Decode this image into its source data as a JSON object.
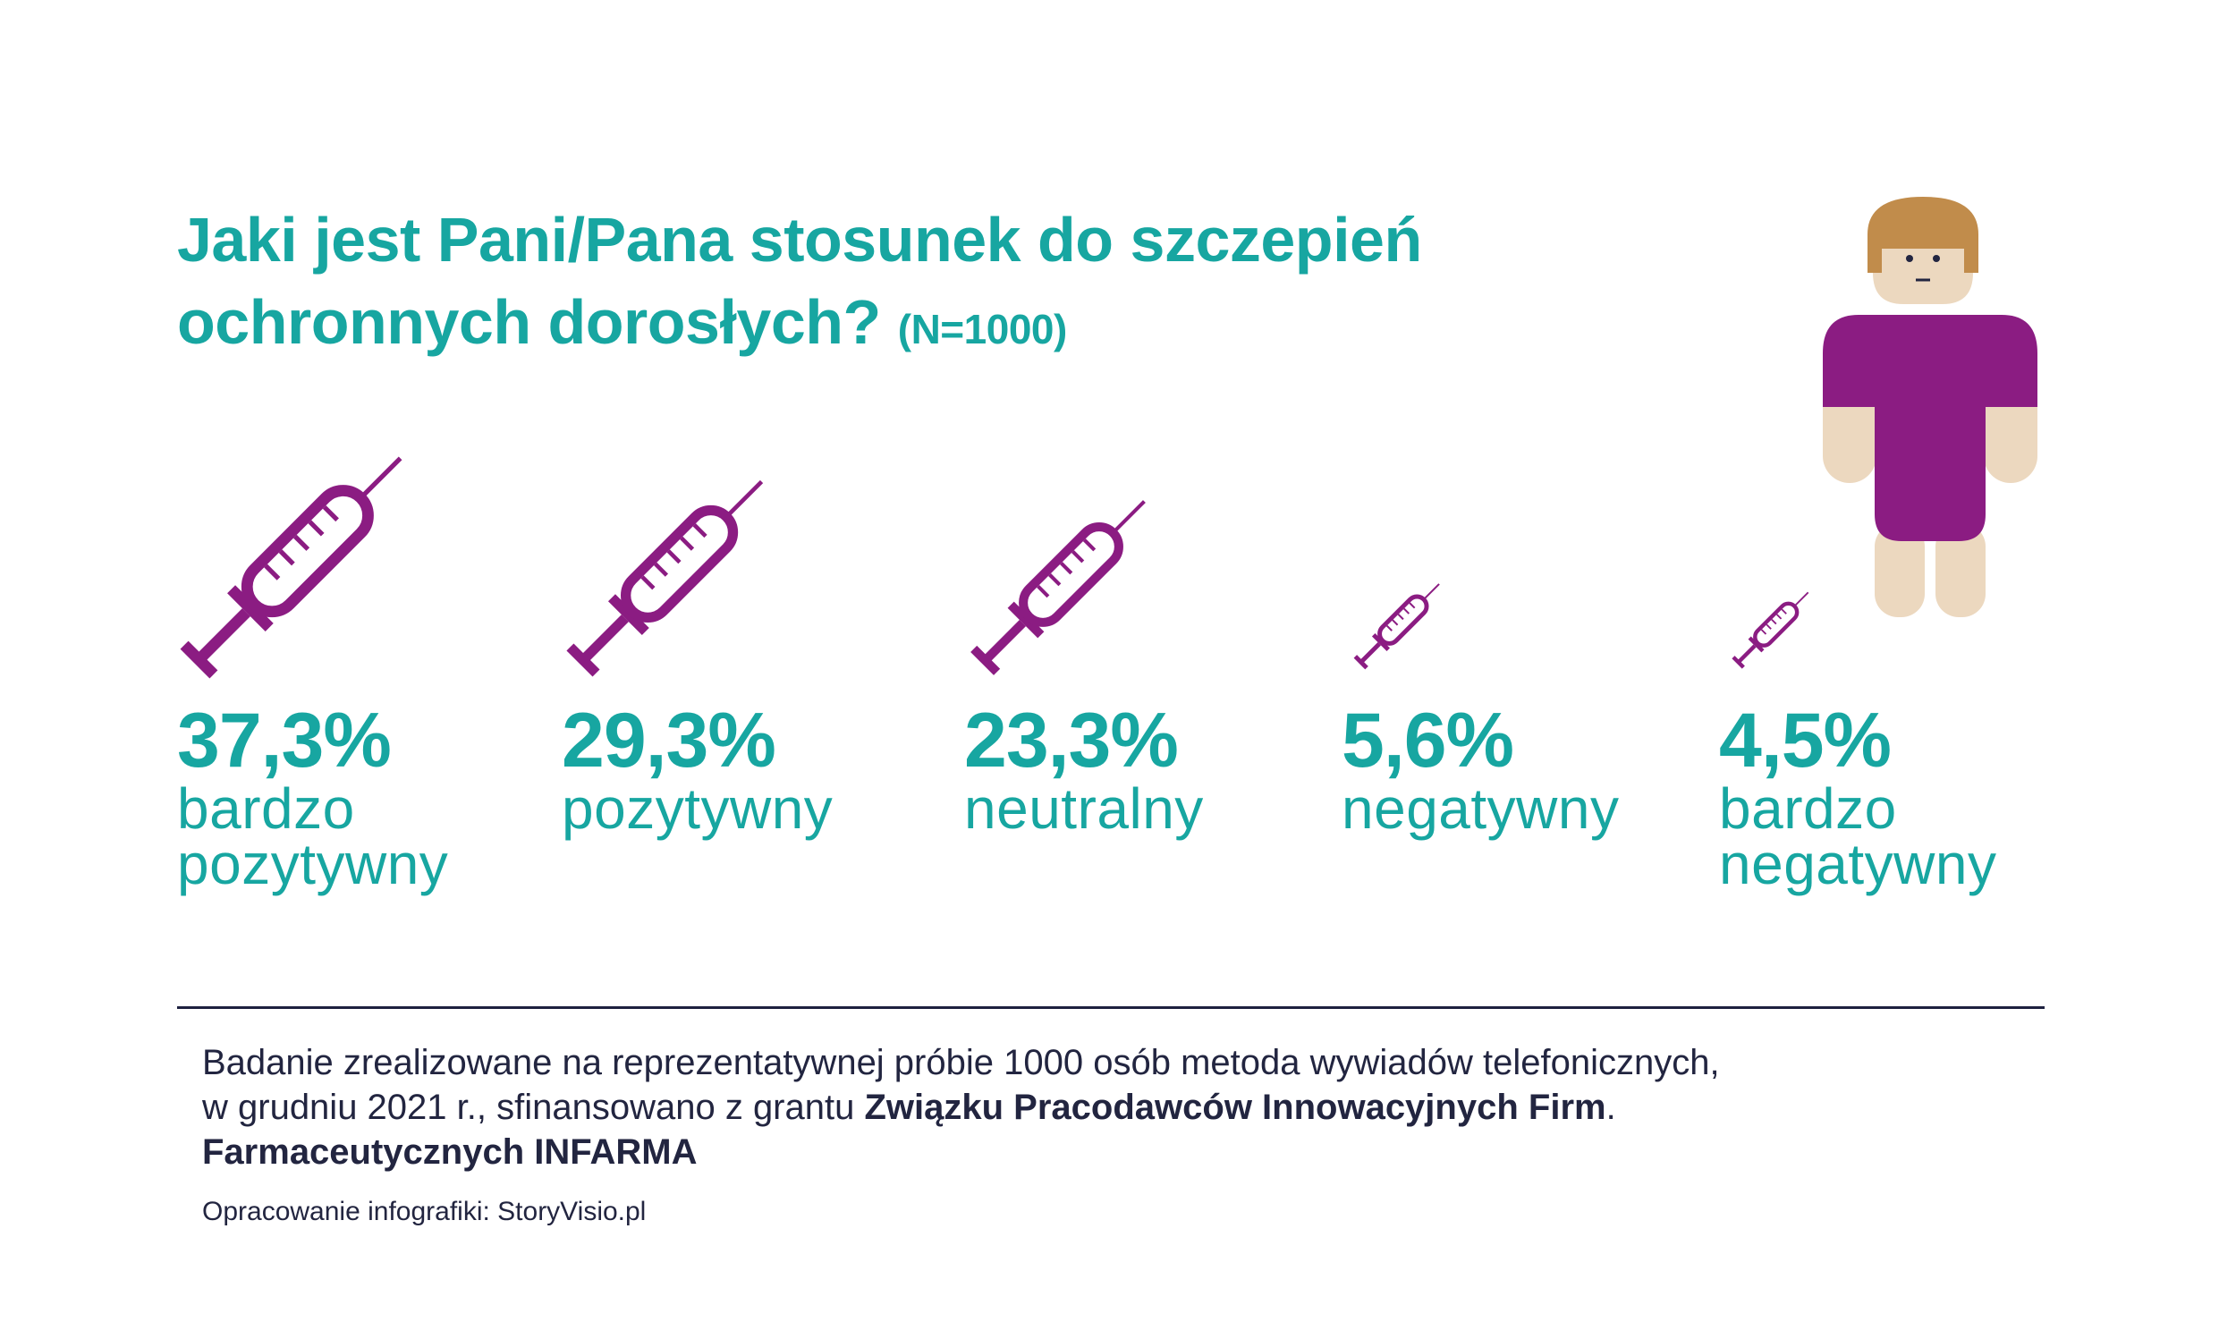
{
  "title": {
    "line1": "Jaki jest Pani/Pana stosunek do szczepień",
    "line2": "ochronnych dorosłych?",
    "sample": "(N=1000)"
  },
  "chart_data": {
    "type": "pictogram",
    "categories": [
      "bardzo pozytywny",
      "pozytywny",
      "neutralny",
      "negatywny",
      "bardzo negatywny"
    ],
    "values": [
      37.3,
      29.3,
      23.3,
      5.6,
      4.5
    ],
    "unit": "%",
    "value_labels": [
      "37,3%",
      "29,3%",
      "23,3%",
      "5,6%",
      "4,5%"
    ],
    "label_lines": [
      [
        "bardzo",
        "pozytywny"
      ],
      [
        "pozytywny"
      ],
      [
        "neutralny"
      ],
      [
        "negatywny"
      ],
      [
        "bardzo",
        "negatywny"
      ]
    ],
    "icon": "syringe-icon",
    "color": "#8b1c82"
  },
  "colors": {
    "accent": "#17a6a1",
    "syringe": "#8b1c82",
    "text": "#222540",
    "skin": "#ecd8bf",
    "hair": "#c18c4b"
  },
  "illustration": {
    "icon": "person-icon"
  },
  "footer": {
    "line1": "Badanie zrealizowane na reprezentatywnej próbie 1000 osób metoda wywiadów telefonicznych,",
    "line2_a": "w grudniu 2021 r., sfinansowano z grantu ",
    "line2_b": "Związku Pracodawców Innowacyjnych Firm",
    "line2_c": ".",
    "line3": "Farmaceutycznych INFARMA",
    "credit": "Opracowanie infografiki: StoryVisio.pl"
  }
}
